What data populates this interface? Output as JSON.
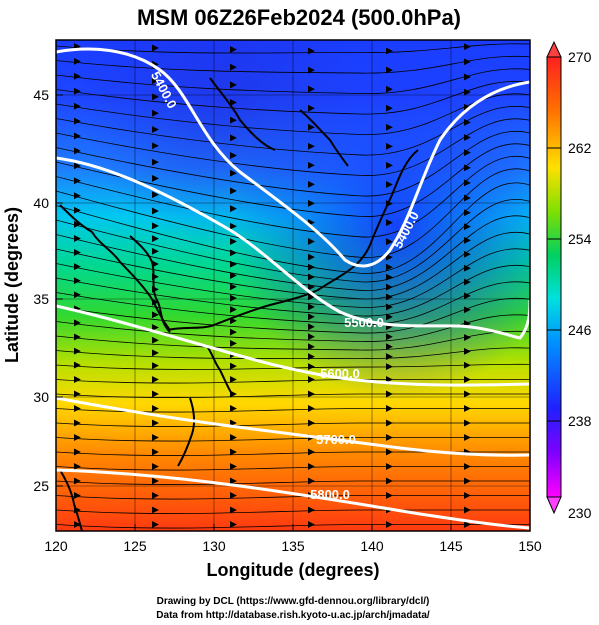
{
  "title": "MSM 06Z26Feb2024 (500.0hPa)",
  "x_axis": {
    "label": "Longitude (degrees)",
    "range": [
      120,
      150
    ],
    "ticks": [
      "120",
      "125",
      "130",
      "135",
      "140",
      "145",
      "150"
    ]
  },
  "y_axis": {
    "label": "Latitude  (degrees)",
    "range": [
      22.4,
      47.6
    ],
    "ticks": [
      "25",
      "30",
      "35",
      "40",
      "45"
    ]
  },
  "colorbar": {
    "labels": [
      "270",
      "262",
      "254",
      "246",
      "238",
      "230"
    ],
    "range": [
      230,
      270
    ],
    "palette": [
      "#ff00ff",
      "#3030ff",
      "#00d4ff",
      "#00d060",
      "#a8e000",
      "#ffe000",
      "#ff6000",
      "#ff2020"
    ]
  },
  "contours": [
    {
      "label": "5400.0"
    },
    {
      "label": "5500.0"
    },
    {
      "label": "5600.0"
    },
    {
      "label": "5700.0"
    },
    {
      "label": "5800.0"
    },
    {
      "label": "5400.0"
    }
  ],
  "credits": {
    "line1": "Drawing by DCL (https://www.gfd-dennou.org/library/dcl/)",
    "line2": "Data from http://database.rish.kyoto-u.ac.jp/arch/jmadata/"
  }
}
